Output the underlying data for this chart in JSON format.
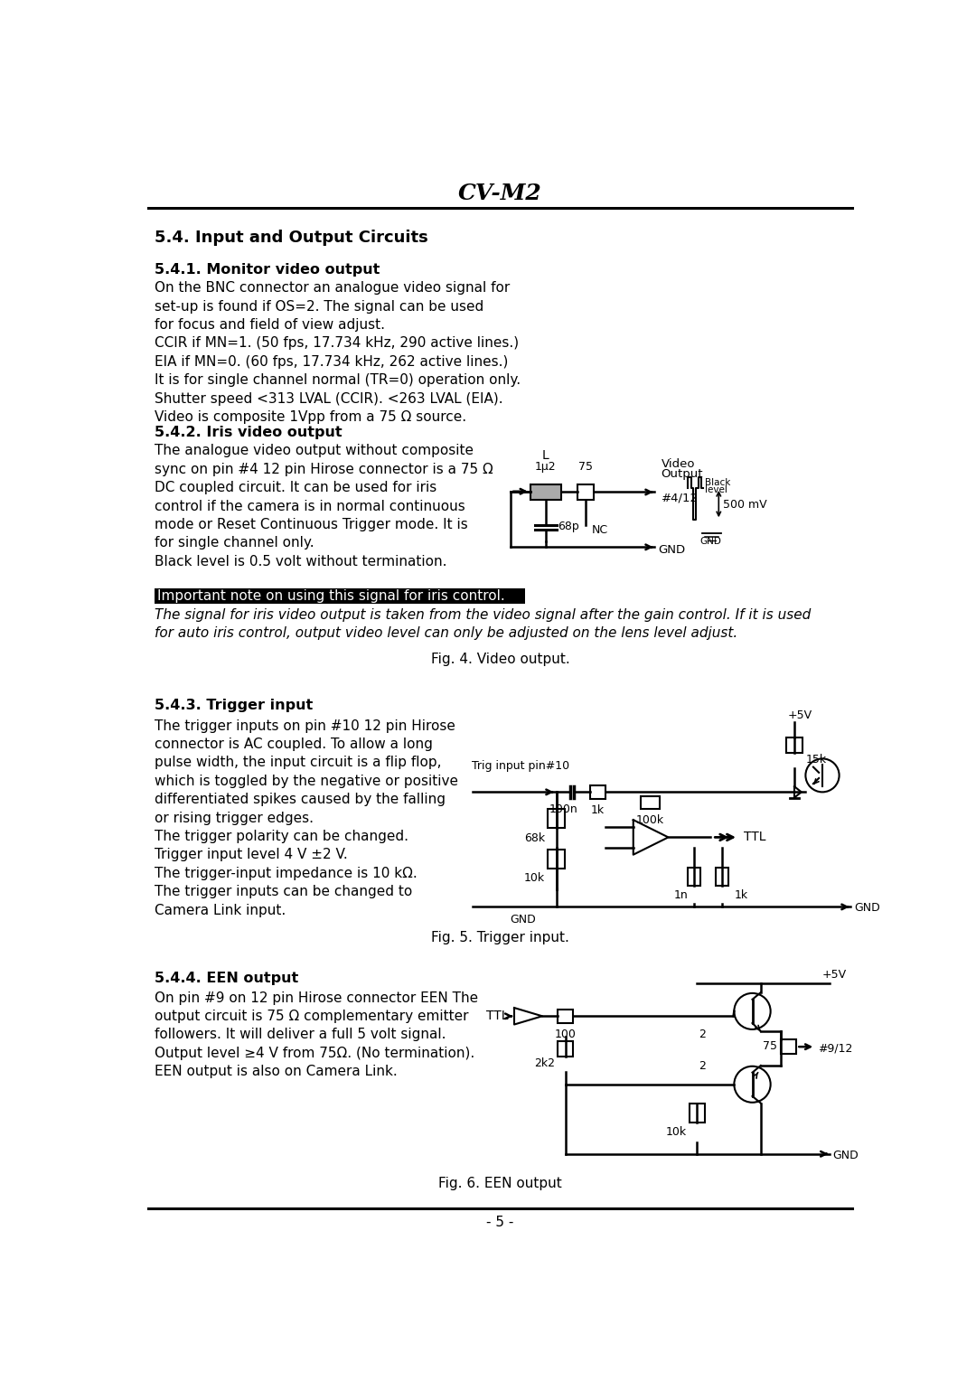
{
  "title": "CV-M2",
  "page_number": "- 5 -",
  "section_title": "5.4. Input and Output Circuits",
  "bg_color": "#ffffff",
  "monitor_subtitle": "5.4.1. Monitor video output",
  "monitor_body": "On the BNC connector an analogue video signal for\nset-up is found if OS=2. The signal can be used\nfor focus and field of view adjust.\nCCIR if MN=1. (50 fps, 17.734 kHz, 290 active lines.)\nEIA if MN=0. (60 fps, 17.734 kHz, 262 active lines.)\nIt is for single channel normal (TR=0) operation only.\nShutter speed <313 LVAL (CCIR). <263 LVAL (EIA).\nVideo is composite 1Vpp from a 75 Ω source.",
  "iris_subtitle": "5.4.2. Iris video output",
  "iris_body": "The analogue video output without composite\nsync on pin #4 12 pin Hirose connector is a 75 Ω\nDC coupled circuit. It can be used for iris\ncontrol if the camera is in normal continuous\nmode or Reset Continuous Trigger mode. It is\nfor single channel only.\nBlack level is 0.5 volt without termination.",
  "important_note": "Important note on using this signal for iris control.",
  "important_italic": "The signal for iris video output is taken from the video signal after the gain control. If it is used\nfor auto iris control, output video level can only be adjusted on the lens level adjust.",
  "fig4_caption": "Fig. 4. Video output.",
  "trigger_subtitle": "5.4.3. Trigger input",
  "trigger_body": "The trigger inputs on pin #10 12 pin Hirose\nconnector is AC coupled. To allow a long\npulse width, the input circuit is a flip flop,\nwhich is toggled by the negative or positive\ndifferentiated spikes caused by the falling\nor rising trigger edges.\nThe trigger polarity can be changed.\nTrigger input level 4 V ±2 V.\nThe trigger-input impedance is 10 kΩ.\nThe trigger inputs can be changed to\nCamera Link input.",
  "fig5_caption": "Fig. 5. Trigger input.",
  "een_subtitle": "5.4.4. EEN output",
  "een_body": "On pin #9 on 12 pin Hirose connector EEN The\noutput circuit is 75 Ω complementary emitter\nfollowers. It will deliver a full 5 volt signal.\nOutput level ≥4 V from 75Ω. (No termination).\nEEN output is also on Camera Link.",
  "fig6_caption": "Fig. 6. EEN output"
}
